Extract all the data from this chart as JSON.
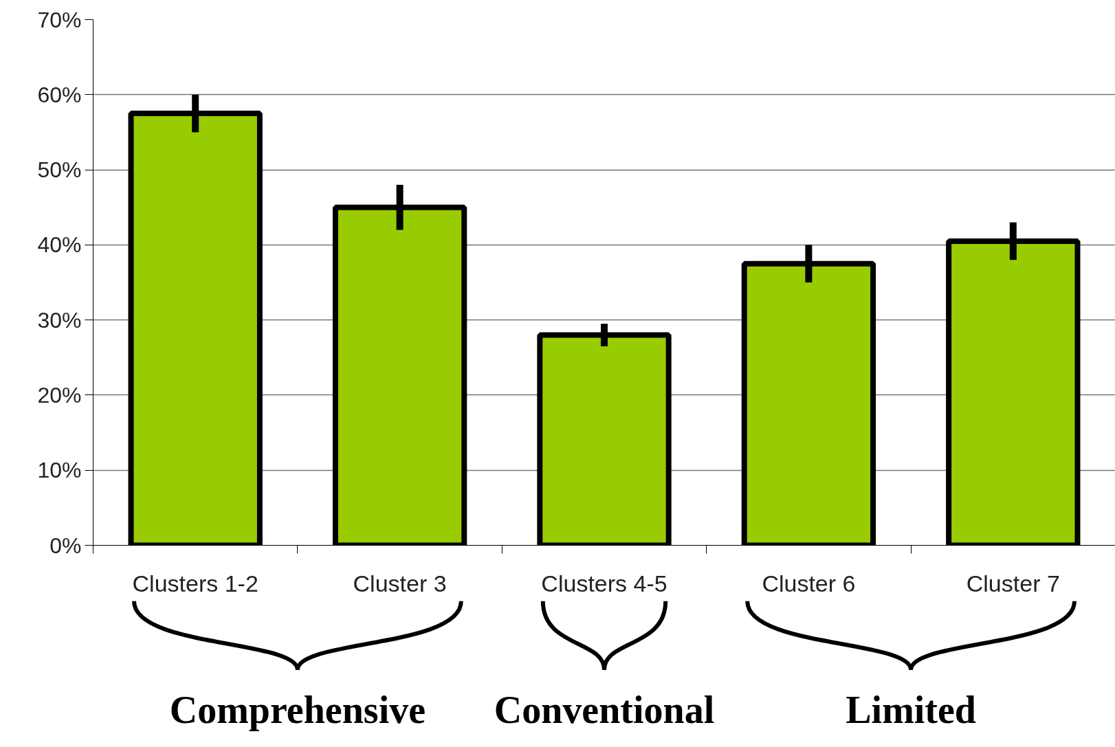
{
  "chart_data": {
    "type": "bar",
    "categories": [
      "Clusters 1-2",
      "Cluster 3",
      "Clusters 4-5",
      "Cluster 6",
      "Cluster 7"
    ],
    "values": [
      57.5,
      45,
      28,
      37.5,
      40.5
    ],
    "errors": [
      2.5,
      3,
      1.5,
      2.5,
      2.5
    ],
    "color": "#99cc00",
    "ylim": [
      0,
      70
    ],
    "yticks": [
      {
        "value": 0,
        "label": "0%"
      },
      {
        "value": 10,
        "label": "10%"
      },
      {
        "value": 20,
        "label": "20%"
      },
      {
        "value": 30,
        "label": "30%"
      },
      {
        "value": 40,
        "label": "40%"
      },
      {
        "value": 50,
        "label": "50%"
      },
      {
        "value": 60,
        "label": "60%"
      },
      {
        "value": 70,
        "label": "70%"
      }
    ],
    "grid": "y",
    "annotations": [
      "Comprehensive",
      "Conventional",
      "Limited"
    ]
  }
}
